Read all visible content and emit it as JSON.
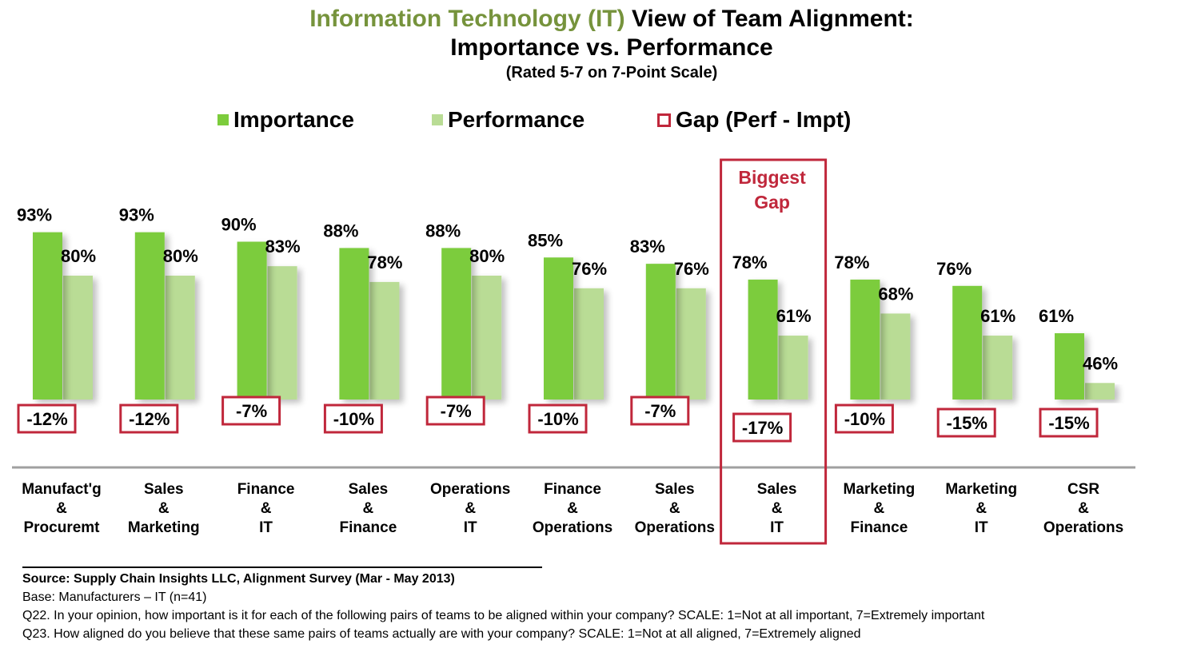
{
  "title": {
    "line1_green": "Information Technology (IT)",
    "line1_rest": " View of Team Alignment:",
    "line2": "Importance vs. Performance",
    "line3": "(Rated 5-7 on 7-Point Scale)"
  },
  "legend": {
    "importance": "Importance",
    "performance": "Performance",
    "gap": "Gap (Perf - Impt)"
  },
  "highlight_label": [
    "Biggest",
    "Gap"
  ],
  "colors": {
    "importance": "#7ccc3c",
    "performance": "#b9dc95",
    "gap_border": "#c0273b",
    "title_green": "#76933c"
  },
  "chart_data": {
    "type": "bar",
    "categories": [
      [
        "Manufact'g",
        "&",
        "Procuremt"
      ],
      [
        "Sales",
        "&",
        "Marketing"
      ],
      [
        "Finance",
        "&",
        "IT"
      ],
      [
        "Sales",
        "&",
        "Finance"
      ],
      [
        "Operations",
        "&",
        "IT"
      ],
      [
        "Finance",
        "&",
        "Operations"
      ],
      [
        "Sales",
        "&",
        "Operations"
      ],
      [
        "Sales",
        "&",
        "IT"
      ],
      [
        "Marketing",
        "&",
        "Finance"
      ],
      [
        "Marketing",
        "&",
        "IT"
      ],
      [
        "CSR",
        "&",
        "Operations"
      ]
    ],
    "series": [
      {
        "name": "Importance",
        "values": [
          93,
          93,
          90,
          88,
          88,
          85,
          83,
          78,
          78,
          76,
          61
        ]
      },
      {
        "name": "Performance",
        "values": [
          80,
          80,
          83,
          78,
          80,
          76,
          76,
          61,
          68,
          61,
          46
        ]
      }
    ],
    "gap": {
      "name": "Gap (Perf - Impt)",
      "values": [
        -12,
        -12,
        -7,
        -10,
        -7,
        -10,
        -7,
        -17,
        -10,
        -15,
        -15
      ]
    },
    "value_format": "%",
    "highlight_category_index": 7
  },
  "footer": {
    "source": "Source:  Supply Chain Insights LLC, Alignment Survey  (Mar - May 2013)",
    "base": "Base:  Manufacturers   – IT (n=41)",
    "q22": "Q22. In your opinion, how important is it for each of the following pairs of teams to be aligned within your company?  SCALE:  1=Not at all important, 7=Extremely important",
    "q23": "Q23. How aligned do you believe that these same pairs of teams actually are with your company?  SCALE: 1=Not at all aligned, 7=Extremely aligned"
  }
}
